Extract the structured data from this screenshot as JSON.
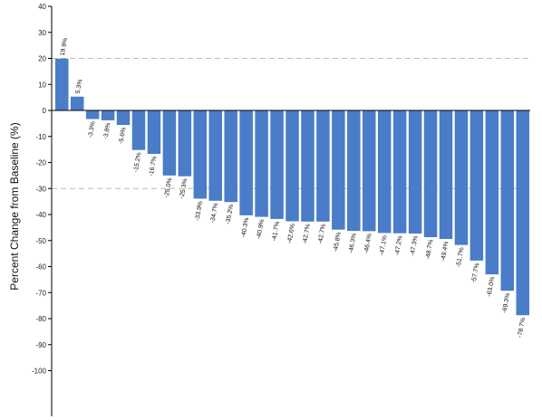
{
  "chart_data": {
    "type": "bar",
    "title": "",
    "xlabel": "",
    "ylabel": "Percent Change from Baseline (%)",
    "ylim": [
      -115,
      40
    ],
    "yticks": [
      40,
      30,
      20,
      10,
      0,
      -10,
      -20,
      -30,
      -40,
      -50,
      -60,
      -70,
      -80,
      -90,
      -100
    ],
    "reference_lines": [
      20,
      -30
    ],
    "bar_color": "#4a7cc7",
    "reference_line_color": "#bbbbbb",
    "grid": false,
    "legend": "none",
    "values": [
      19.9,
      5.3,
      -3.3,
      -3.8,
      -5.6,
      -15.2,
      -16.7,
      -25.0,
      -25.3,
      -33.9,
      -34.7,
      -35.2,
      -40.3,
      -40.9,
      -41.7,
      -42.6,
      -42.7,
      -42.7,
      -45.8,
      -46.3,
      -46.4,
      -47.1,
      -47.2,
      -47.3,
      -48.7,
      -49.4,
      -51.7,
      -57.7,
      -63.0,
      -69.3,
      -78.7
    ],
    "labels": [
      "19.9%",
      "5.3%",
      "-3.3%",
      "-3.8%",
      "-5.6%",
      "-15.2%",
      "-16.7%",
      "-25.0%",
      "-25.3%",
      "-33.9%",
      "-34.7%",
      "-35.2%",
      "-40.3%",
      "-40.9%",
      "-41.7%",
      "-42.6%",
      "-42.7%",
      "-42.7%",
      "-45.8%",
      "-46.3%",
      "-46.4%",
      "-47.1%",
      "-47.2%",
      "-47.3%",
      "-48.7%",
      "-49.4%",
      "-51.7%",
      "-57.7%",
      "-63.0%",
      "-69.3%",
      "-78.7%"
    ]
  }
}
